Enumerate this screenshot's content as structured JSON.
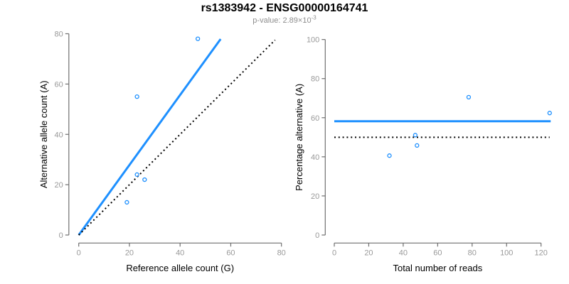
{
  "header": {
    "title": "rs1383942 - ENSG00000164741",
    "subtitle_prefix": "p-value: 2.89×10",
    "subtitle_exponent": "-3"
  },
  "colors": {
    "accent_blue": "#1E90FF",
    "reference_black": "#000000",
    "axis_line": "#6f6f6f",
    "tick_label": "#999999",
    "axis_title": "#000000",
    "subtitle_gray": "#8e8e8e"
  },
  "chart_data": [
    {
      "type": "scatter",
      "name": "allele-counts-panel",
      "xlabel": "Reference allele count (G)",
      "ylabel": "Alternative allele count (A)",
      "xlim": [
        0,
        80
      ],
      "ylim": [
        0,
        80
      ],
      "xticks": [
        0,
        20,
        40,
        60,
        80
      ],
      "yticks": [
        0,
        20,
        40,
        60,
        80
      ],
      "grid": false,
      "legend": false,
      "points": [
        [
          19,
          13
        ],
        [
          23,
          55
        ],
        [
          23,
          24
        ],
        [
          26,
          22
        ],
        [
          47,
          78
        ]
      ],
      "lines": [
        {
          "name": "fit-line",
          "style": "solid",
          "width": 3,
          "color_key": "accent_blue",
          "x": [
            0,
            56
          ],
          "y": [
            0,
            77.9
          ],
          "meaning": "fitted allelic ratio, slope ~1.39"
        },
        {
          "name": "identity-line",
          "style": "dotted",
          "width": 2,
          "color_key": "reference_black",
          "x": [
            0,
            77.5
          ],
          "y": [
            0,
            77.5
          ],
          "meaning": "y = x (balanced alleles)"
        }
      ]
    },
    {
      "type": "scatter",
      "name": "percentage-panel",
      "xlabel": "Total number of reads",
      "ylabel": "Percentage alternative (A)",
      "xlim": [
        0,
        120
      ],
      "ylim": [
        0,
        100
      ],
      "xticks": [
        0,
        20,
        40,
        60,
        80,
        100,
        120
      ],
      "yticks": [
        0,
        20,
        40,
        60,
        80,
        100
      ],
      "grid": false,
      "legend": false,
      "points": [
        [
          32,
          40.6
        ],
        [
          47,
          51.1
        ],
        [
          48,
          45.8
        ],
        [
          78,
          70.5
        ],
        [
          125,
          62.4
        ]
      ],
      "lines": [
        {
          "name": "fit-line",
          "style": "solid",
          "width": 3,
          "color_key": "accent_blue",
          "x": [
            0,
            125.6
          ],
          "y": [
            58.2,
            58.2
          ],
          "meaning": "fitted mean percentage ~58.2%"
        },
        {
          "name": "null-line",
          "style": "dotted",
          "width": 2,
          "color_key": "reference_black",
          "x": [
            0,
            125
          ],
          "y": [
            50,
            50
          ],
          "meaning": "50% null expectation"
        }
      ]
    }
  ]
}
